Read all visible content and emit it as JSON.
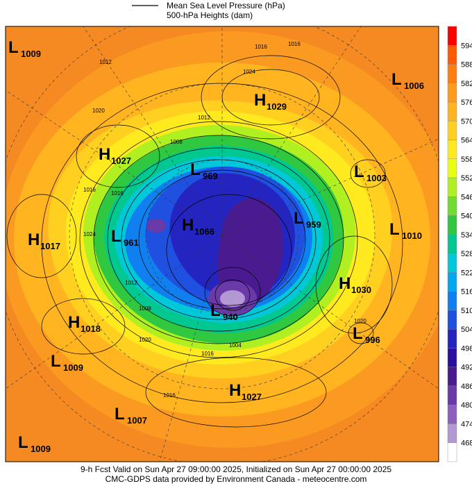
{
  "legend": {
    "line_1": "Mean Sea Level Pressure (hPa)",
    "line_2": "500-hPa Heights (dam)"
  },
  "colorbar": {
    "labels": [
      594,
      588,
      582,
      576,
      570,
      564,
      558,
      552,
      546,
      540,
      534,
      528,
      522,
      516,
      510,
      504,
      498,
      492,
      486,
      480,
      474,
      468
    ],
    "colors": [
      "#ff0000",
      "#ff5a00",
      "#ff7e10",
      "#ff9a1a",
      "#ffb420",
      "#ffd020",
      "#ffea20",
      "#e8ff10",
      "#b0f020",
      "#70dc30",
      "#30c840",
      "#00c890",
      "#00c8d8",
      "#00a8f0",
      "#1080f0",
      "#2050e0",
      "#2424c0",
      "#2a10a0",
      "#4a1a90",
      "#6a3aa8",
      "#8c60bc",
      "#b498d4",
      "#ffffff"
    ]
  },
  "centers": [
    {
      "type": "L",
      "value": "1009"
    },
    {
      "type": "H",
      "value": "1029"
    },
    {
      "type": "L",
      "value": "1006"
    },
    {
      "type": "H",
      "value": "1027"
    },
    {
      "type": "L",
      "value": "969"
    },
    {
      "type": "L",
      "value": "1003"
    },
    {
      "type": "L",
      "value": "959"
    },
    {
      "type": "H",
      "value": "1066"
    },
    {
      "type": "L",
      "value": "961"
    },
    {
      "type": "L",
      "value": "1010"
    },
    {
      "type": "H",
      "value": "1017"
    },
    {
      "type": "H",
      "value": "1030"
    },
    {
      "type": "L",
      "value": "940"
    },
    {
      "type": "H",
      "value": "1018"
    },
    {
      "type": "L",
      "value": "996"
    },
    {
      "type": "L",
      "value": "1009"
    },
    {
      "type": "H",
      "value": "1027"
    },
    {
      "type": "L",
      "value": "1007"
    },
    {
      "type": "L",
      "value": "1009"
    }
  ],
  "contour_labels": [
    "1012",
    "1016",
    "1024",
    "1020",
    "1012",
    "1016",
    "1016",
    "1024",
    "1008",
    "1012",
    "1016",
    "1020",
    "1016",
    "1008",
    "1004",
    "1016",
    "1020"
  ],
  "footer": {
    "line_1": "9-h Fcst Valid on Sun Apr 27 09:00:00 2025, Initialized on Sun Apr 27 00:00:00 2025",
    "line_2": "CMC-GDPS data provided by Environment Canada - meteocentre.com"
  }
}
